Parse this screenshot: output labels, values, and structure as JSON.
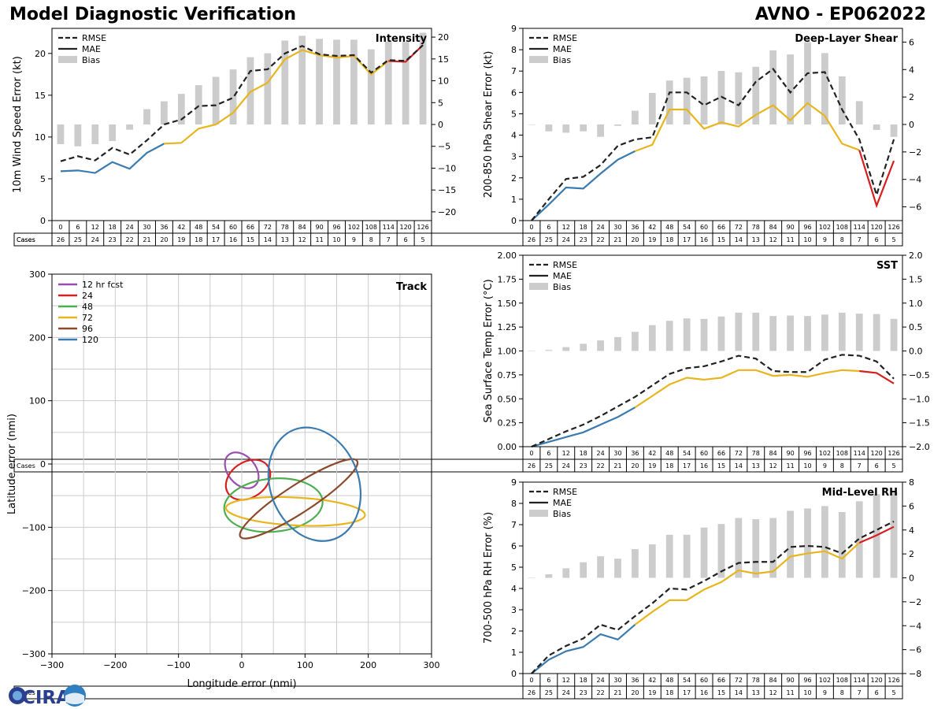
{
  "header": {
    "left_title": "Model Diagnostic Verification",
    "right_title": "AVNO - EP062022"
  },
  "logo": {
    "text": "CIRA"
  },
  "colors": {
    "rmse": "#222222",
    "mae_blue": "#3a7bb0",
    "mae_yellow": "#e8b51e",
    "mae_red": "#d62020",
    "bias": "#cccccc"
  },
  "chart_data": [
    {
      "id": "intensity",
      "type": "line+bar",
      "title": "Intensity",
      "ylabel": "10m Wind Speed Error (kt)",
      "ylim": [
        0,
        23
      ],
      "yticks": [
        "0",
        "5",
        "10",
        "15",
        "20"
      ],
      "y2lim": [
        -22,
        22
      ],
      "y2ticks": [
        "−20",
        "−15",
        "−10",
        "−5",
        "0",
        "5",
        "10",
        "15",
        "20"
      ],
      "legend": [
        "RMSE",
        "MAE",
        "Bias"
      ],
      "x": [
        "0",
        "6",
        "12",
        "18",
        "24",
        "30",
        "36",
        "42",
        "48",
        "54",
        "60",
        "66",
        "72",
        "78",
        "84",
        "90",
        "96",
        "102",
        "108",
        "114",
        "120",
        "126"
      ],
      "cases_label": "Cases",
      "cases": [
        "26",
        "25",
        "24",
        "23",
        "22",
        "21",
        "20",
        "19",
        "18",
        "17",
        "16",
        "15",
        "14",
        "13",
        "12",
        "11",
        "10",
        "9",
        "8",
        "7",
        "6",
        "5"
      ],
      "rmse": [
        7.1,
        7.7,
        7.2,
        8.7,
        7.9,
        9.6,
        11.5,
        12.1,
        13.7,
        13.8,
        14.7,
        17.9,
        18.1,
        20.0,
        20.9,
        19.9,
        19.7,
        19.8,
        17.7,
        19.2,
        19.1,
        21.0
      ],
      "mae": [
        5.9,
        6.0,
        5.7,
        7.0,
        6.2,
        8.1,
        9.2,
        9.3,
        11.0,
        11.5,
        12.9,
        15.4,
        16.5,
        19.3,
        20.4,
        19.8,
        19.5,
        19.7,
        17.5,
        19.1,
        19.0,
        21.0
      ],
      "mae_colors_break": [
        6,
        19
      ],
      "bias": [
        -4.5,
        -5.0,
        -4.5,
        -3.8,
        -1.2,
        3.5,
        5.3,
        7.0,
        9.0,
        10.9,
        12.6,
        15.4,
        16.3,
        19.2,
        20.3,
        19.6,
        19.4,
        19.4,
        17.2,
        19.0,
        18.9,
        21.0
      ]
    },
    {
      "id": "shear",
      "type": "line+bar",
      "title": "Deep-Layer Shear",
      "ylabel": "200-850 hPa Shear Error (kt)",
      "ylim": [
        0,
        9
      ],
      "yticks": [
        "0",
        "1",
        "2",
        "3",
        "4",
        "5",
        "6",
        "7",
        "8",
        "9"
      ],
      "y2lim": [
        -7,
        7
      ],
      "y2ticks": [
        "−6",
        "−4",
        "−2",
        "0",
        "2",
        "4",
        "6"
      ],
      "legend": [
        "RMSE",
        "MAE",
        "Bias"
      ],
      "x": [
        "0",
        "6",
        "12",
        "18",
        "24",
        "30",
        "36",
        "42",
        "48",
        "54",
        "60",
        "66",
        "72",
        "78",
        "84",
        "90",
        "96",
        "102",
        "108",
        "114",
        "120",
        "126"
      ],
      "cases_label": "Cases",
      "cases": [
        "26",
        "25",
        "24",
        "23",
        "22",
        "21",
        "20",
        "19",
        "18",
        "17",
        "16",
        "15",
        "14",
        "13",
        "12",
        "11",
        "10",
        "9",
        "8",
        "7",
        "6",
        "5"
      ],
      "rmse": [
        0.0,
        1.0,
        1.95,
        2.05,
        2.6,
        3.5,
        3.8,
        3.9,
        6.0,
        6.0,
        5.4,
        5.8,
        5.4,
        6.5,
        7.1,
        6.0,
        6.9,
        6.95,
        5.2,
        3.8,
        1.2,
        3.8
      ],
      "mae": [
        0.0,
        0.75,
        1.55,
        1.5,
        2.2,
        2.85,
        3.25,
        3.55,
        5.2,
        5.2,
        4.3,
        4.6,
        4.4,
        4.95,
        5.4,
        4.7,
        5.5,
        4.9,
        3.6,
        3.3,
        0.7,
        2.8
      ],
      "mae_colors_break": [
        6,
        19
      ],
      "bias": [
        0.0,
        -0.5,
        -0.6,
        -0.5,
        -0.9,
        -0.1,
        1.0,
        2.3,
        3.2,
        3.4,
        3.5,
        3.9,
        3.8,
        4.2,
        5.4,
        5.1,
        6.0,
        5.2,
        3.5,
        1.7,
        -0.4,
        -0.9
      ]
    },
    {
      "id": "sst",
      "type": "line+bar",
      "title": "SST",
      "ylabel": "Sea Surface Temp Error (°C)",
      "ylim": [
        0,
        2
      ],
      "yticks": [
        "0.00",
        "0.25",
        "0.50",
        "0.75",
        "1.00",
        "1.25",
        "1.50",
        "1.75",
        "2.00"
      ],
      "y2lim": [
        -2,
        2
      ],
      "y2ticks": [
        "−2.0",
        "−1.5",
        "−1.0",
        "−0.5",
        "0.0",
        "0.5",
        "1.0",
        "1.5",
        "2.0"
      ],
      "legend": [
        "RMSE",
        "MAE",
        "Bias"
      ],
      "x": [
        "0",
        "6",
        "12",
        "18",
        "24",
        "30",
        "36",
        "42",
        "48",
        "54",
        "60",
        "66",
        "72",
        "78",
        "84",
        "90",
        "96",
        "102",
        "108",
        "114",
        "120",
        "126"
      ],
      "cases_label": "Cases",
      "cases": [
        "26",
        "25",
        "24",
        "23",
        "22",
        "21",
        "20",
        "19",
        "18",
        "17",
        "16",
        "15",
        "14",
        "13",
        "12",
        "11",
        "10",
        "9",
        "8",
        "7",
        "6",
        "5"
      ],
      "rmse": [
        0.0,
        0.08,
        0.16,
        0.23,
        0.32,
        0.42,
        0.52,
        0.64,
        0.76,
        0.82,
        0.84,
        0.89,
        0.95,
        0.92,
        0.79,
        0.78,
        0.78,
        0.91,
        0.96,
        0.95,
        0.89,
        0.71
      ],
      "mae": [
        0.0,
        0.05,
        0.1,
        0.15,
        0.23,
        0.31,
        0.41,
        0.53,
        0.65,
        0.72,
        0.7,
        0.72,
        0.8,
        0.8,
        0.74,
        0.75,
        0.73,
        0.77,
        0.8,
        0.79,
        0.77,
        0.66
      ],
      "mae_colors_break": [
        6,
        19
      ],
      "bias": [
        0.0,
        0.02,
        0.08,
        0.15,
        0.22,
        0.29,
        0.4,
        0.54,
        0.63,
        0.68,
        0.67,
        0.72,
        0.8,
        0.8,
        0.73,
        0.74,
        0.73,
        0.76,
        0.8,
        0.78,
        0.77,
        0.67
      ]
    },
    {
      "id": "rh",
      "type": "line+bar",
      "title": "Mid-Level RH",
      "ylabel": "700-500 hPa RH Error (%)",
      "ylim": [
        0,
        9
      ],
      "yticks": [
        "0",
        "1",
        "2",
        "3",
        "4",
        "5",
        "6",
        "7",
        "8",
        "9"
      ],
      "y2lim": [
        -8,
        8
      ],
      "y2ticks": [
        "−8",
        "−6",
        "−4",
        "−2",
        "0",
        "2",
        "4",
        "6",
        "8"
      ],
      "legend": [
        "RMSE",
        "MAE",
        "Bias"
      ],
      "x": [
        "0",
        "6",
        "12",
        "18",
        "24",
        "30",
        "36",
        "42",
        "48",
        "54",
        "60",
        "66",
        "72",
        "78",
        "84",
        "90",
        "96",
        "102",
        "108",
        "114",
        "120",
        "126"
      ],
      "cases_label": "Cases",
      "cases": [
        "26",
        "25",
        "24",
        "23",
        "22",
        "21",
        "20",
        "19",
        "18",
        "17",
        "16",
        "15",
        "14",
        "13",
        "12",
        "11",
        "10",
        "9",
        "8",
        "7",
        "6",
        "5"
      ],
      "rmse": [
        0.0,
        0.85,
        1.3,
        1.65,
        2.3,
        2.05,
        2.7,
        3.3,
        4.0,
        3.95,
        4.35,
        4.8,
        5.2,
        5.25,
        5.25,
        5.95,
        6.0,
        5.95,
        5.65,
        6.35,
        6.75,
        7.15
      ],
      "mae": [
        0.0,
        0.65,
        1.05,
        1.25,
        1.85,
        1.6,
        2.3,
        2.9,
        3.45,
        3.45,
        3.95,
        4.3,
        4.85,
        4.7,
        4.8,
        5.5,
        5.65,
        5.75,
        5.4,
        6.15,
        6.5,
        6.9
      ],
      "mae_colors_break": [
        6,
        19
      ],
      "bias": [
        0.0,
        0.3,
        0.8,
        1.3,
        1.8,
        1.6,
        2.4,
        2.8,
        3.6,
        3.6,
        4.2,
        4.5,
        5.0,
        4.9,
        5.0,
        5.6,
        5.8,
        6.0,
        5.5,
        6.4,
        7.0,
        7.2
      ]
    },
    {
      "id": "track",
      "type": "ellipse",
      "title": "Track",
      "xlabel": "Longitude error (nmi)",
      "ylabel": "Latitude error (nmi)",
      "xlim": [
        -300,
        300
      ],
      "ylim": [
        -300,
        300
      ],
      "xticks": [
        "−300",
        "−200",
        "−100",
        "0",
        "100",
        "200",
        "300"
      ],
      "yticks": [
        "−300",
        "−200",
        "−100",
        "0",
        "100",
        "200",
        "300"
      ],
      "legend_title": "12 hr fcst",
      "series": [
        {
          "name": "12 hr fcst",
          "cx": 0,
          "cy": -10,
          "rx": 22,
          "ry": 32,
          "angle": -40,
          "color": "#9a4fb0"
        },
        {
          "name": "24",
          "cx": 10,
          "cy": -25,
          "rx": 38,
          "ry": 28,
          "angle": -35,
          "color": "#d62020"
        },
        {
          "name": "48",
          "cx": 50,
          "cy": -65,
          "rx": 78,
          "ry": 42,
          "angle": -5,
          "color": "#4caf50"
        },
        {
          "name": "72",
          "cx": 85,
          "cy": -75,
          "rx": 110,
          "ry": 22,
          "angle": 3,
          "color": "#e8b51e"
        },
        {
          "name": "96",
          "cx": 90,
          "cy": -55,
          "rx": 110,
          "ry": 22,
          "angle": -33,
          "color": "#8b4a2b"
        },
        {
          "name": "120",
          "cx": 115,
          "cy": -32,
          "rx": 70,
          "ry": 92,
          "angle": -20,
          "color": "#3a7bb0"
        }
      ]
    }
  ]
}
